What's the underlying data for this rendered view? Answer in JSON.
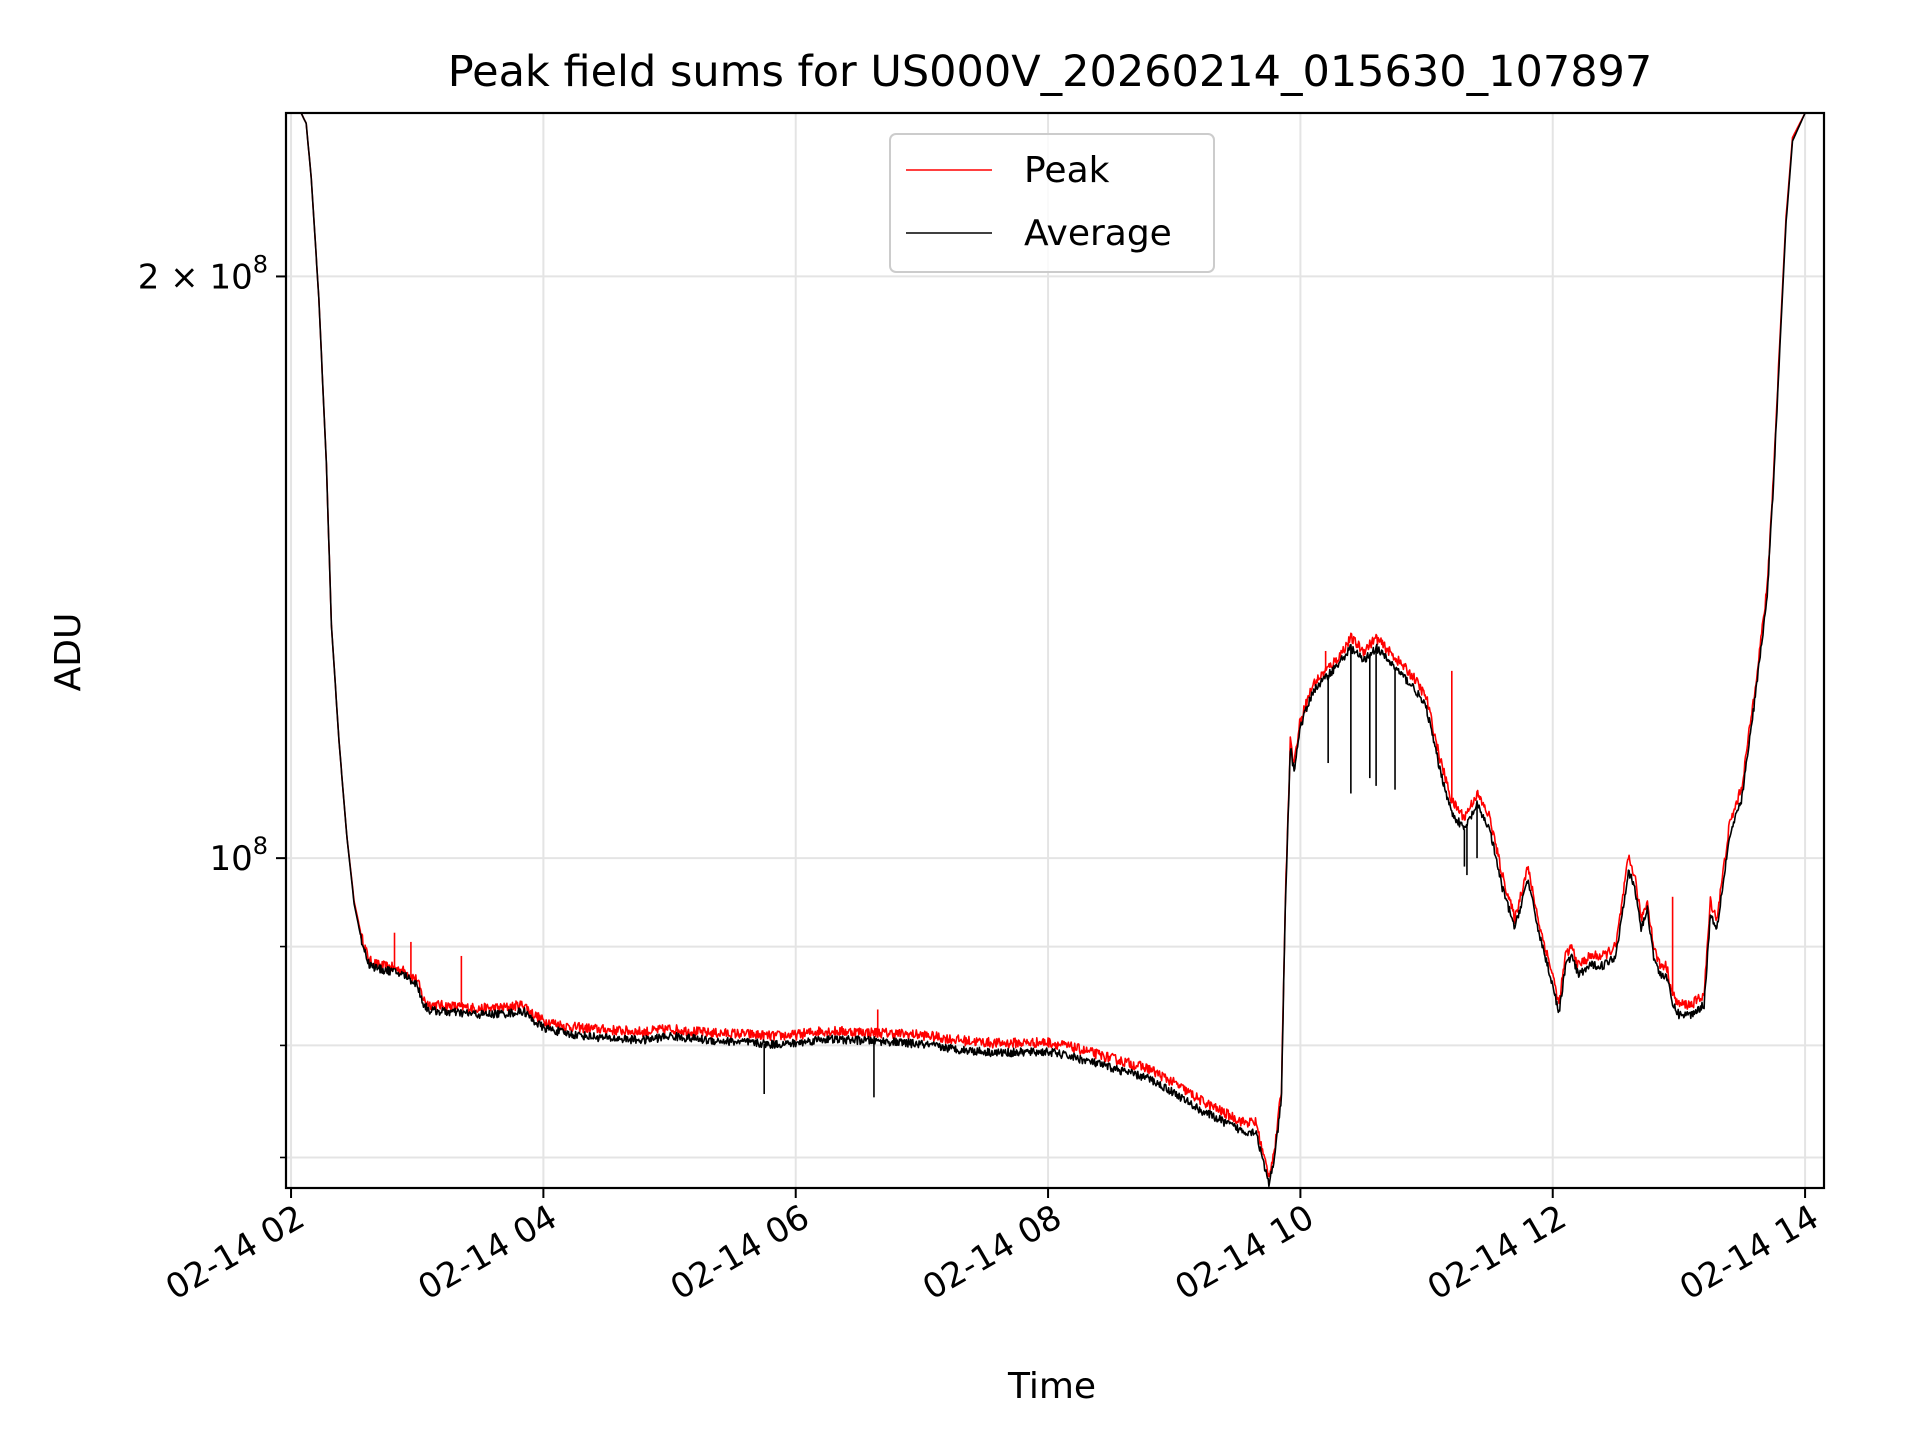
{
  "chart_data": {
    "type": "line",
    "title": "Peak field sums for US000V_20260214_015630_107897",
    "xlabel": "Time",
    "ylabel": "ADU",
    "yscale": "log",
    "ylim": [
      67500000,
      243000000
    ],
    "xlim_hours": [
      1.96,
      14.15
    ],
    "grid": true,
    "legend_position": "top-center",
    "x_tick_hours": [
      2,
      4,
      6,
      8,
      10,
      12,
      14
    ],
    "x_tick_labels": [
      "02-14 02",
      "02-14 04",
      "02-14 06",
      "02-14 08",
      "02-14 10",
      "02-14 12",
      "02-14 14"
    ],
    "y_major_ticks": [
      {
        "value": 200000000,
        "mantissa": "2",
        "exponent": "8"
      },
      {
        "value": 100000000,
        "mantissa": "",
        "exponent": "8"
      }
    ],
    "y_minor_ticks": [
      70000000,
      80000000,
      90000000
    ],
    "series": [
      {
        "name": "Peak",
        "color": "#ff0000",
        "x_hours": [
          1.96,
          2.08,
          2.12,
          2.16,
          2.22,
          2.28,
          2.32,
          2.38,
          2.44,
          2.5,
          2.56,
          2.62,
          2.7,
          2.8,
          2.9,
          3.0,
          3.05,
          3.1,
          3.3,
          3.5,
          3.7,
          3.85,
          3.9,
          4.0,
          4.2,
          4.5,
          4.8,
          5.0,
          5.3,
          5.6,
          5.8,
          6.0,
          6.2,
          6.5,
          6.7,
          7.0,
          7.3,
          7.6,
          8.0,
          8.2,
          8.5,
          8.8,
          9.0,
          9.2,
          9.4,
          9.55,
          9.65,
          9.7,
          9.75,
          9.8,
          9.85,
          9.88,
          9.92,
          9.95,
          10.0,
          10.1,
          10.2,
          10.3,
          10.4,
          10.5,
          10.6,
          10.7,
          10.8,
          10.9,
          11.0,
          11.1,
          11.2,
          11.3,
          11.4,
          11.5,
          11.6,
          11.7,
          11.8,
          11.9,
          12.0,
          12.05,
          12.1,
          12.15,
          12.2,
          12.3,
          12.4,
          12.5,
          12.6,
          12.65,
          12.7,
          12.75,
          12.8,
          12.85,
          12.9,
          12.95,
          13.0,
          13.1,
          13.2,
          13.25,
          13.3,
          13.4,
          13.5,
          13.6,
          13.7,
          13.75,
          13.8,
          13.85,
          13.9,
          14.0
        ],
        "values": [
          243000000,
          243000000,
          240000000,
          225000000,
          195000000,
          160000000,
          132000000,
          115000000,
          103000000,
          95000000,
          91000000,
          88500000,
          88000000,
          87800000,
          87400000,
          86500000,
          84500000,
          84000000,
          83800000,
          83600000,
          83700000,
          84000000,
          83200000,
          82400000,
          81800000,
          81500000,
          81300000,
          81600000,
          81200000,
          81100000,
          80900000,
          81000000,
          81400000,
          81300000,
          81200000,
          81000000,
          80500000,
          80200000,
          80300000,
          79800000,
          78800000,
          77800000,
          76500000,
          75000000,
          73800000,
          73000000,
          73000000,
          70500000,
          68500000,
          71000000,
          76000000,
          95000000,
          115000000,
          112000000,
          118000000,
          123000000,
          125000000,
          127000000,
          130000000,
          128000000,
          130000000,
          128000000,
          126000000,
          124000000,
          121000000,
          113000000,
          107000000,
          105000000,
          108000000,
          105000000,
          98000000,
          93000000,
          99000000,
          92000000,
          87000000,
          84000000,
          89000000,
          90000000,
          88000000,
          89000000,
          89000000,
          90000000,
          100000000,
          98000000,
          93000000,
          95000000,
          90000000,
          88000000,
          88000000,
          85000000,
          84000000,
          84000000,
          85000000,
          95000000,
          93000000,
          104000000,
          109000000,
          122000000,
          138000000,
          158000000,
          185000000,
          215000000,
          236000000,
          243000000
        ]
      },
      {
        "name": "Average",
        "color": "#000000",
        "x_hours": [
          1.96,
          2.08,
          2.12,
          2.16,
          2.22,
          2.28,
          2.32,
          2.38,
          2.44,
          2.5,
          2.56,
          2.62,
          2.7,
          2.8,
          2.9,
          3.0,
          3.05,
          3.1,
          3.3,
          3.5,
          3.7,
          3.85,
          3.9,
          4.0,
          4.2,
          4.5,
          4.8,
          5.0,
          5.3,
          5.6,
          5.8,
          6.0,
          6.2,
          6.5,
          6.7,
          7.0,
          7.3,
          7.6,
          8.0,
          8.2,
          8.5,
          8.8,
          9.0,
          9.2,
          9.4,
          9.55,
          9.65,
          9.7,
          9.75,
          9.8,
          9.85,
          9.88,
          9.92,
          9.95,
          10.0,
          10.1,
          10.2,
          10.3,
          10.4,
          10.5,
          10.6,
          10.7,
          10.8,
          10.9,
          11.0,
          11.1,
          11.2,
          11.3,
          11.4,
          11.5,
          11.6,
          11.7,
          11.8,
          11.9,
          12.0,
          12.05,
          12.1,
          12.15,
          12.2,
          12.3,
          12.4,
          12.5,
          12.6,
          12.65,
          12.7,
          12.75,
          12.8,
          12.85,
          12.9,
          12.95,
          13.0,
          13.1,
          13.2,
          13.25,
          13.3,
          13.4,
          13.5,
          13.6,
          13.7,
          13.75,
          13.8,
          13.85,
          13.9,
          14.0
        ],
        "values": [
          243000000,
          243000000,
          240000000,
          225000000,
          195000000,
          160000000,
          132000000,
          115000000,
          103000000,
          94700000,
          90600000,
          88100000,
          87600000,
          87400000,
          87000000,
          86000000,
          84000000,
          83400000,
          83200000,
          83000000,
          83100000,
          83300000,
          82600000,
          81700000,
          81100000,
          80700000,
          80500000,
          80900000,
          80500000,
          80300000,
          80100000,
          80200000,
          80600000,
          80500000,
          80400000,
          80100000,
          79600000,
          79300000,
          79400000,
          78900000,
          77900000,
          76900000,
          75600000,
          74100000,
          73000000,
          72200000,
          72200000,
          69800000,
          67800000,
          70300000,
          75200000,
          94000000,
          114000000,
          111000000,
          117000000,
          122000000,
          124000000,
          126000000,
          128500000,
          126500000,
          128500000,
          126500000,
          124500000,
          122500000,
          119500000,
          111500000,
          105500000,
          103500000,
          106500000,
          103500000,
          96500000,
          92000000,
          97500000,
          91000000,
          86000000,
          83000000,
          88000000,
          89000000,
          87000000,
          88000000,
          88000000,
          89000000,
          98500000,
          96500000,
          92000000,
          94000000,
          89000000,
          87000000,
          87000000,
          84000000,
          83000000,
          83000000,
          84000000,
          93500000,
          92000000,
          102500000,
          107500000,
          120500000,
          136500000,
          156500000,
          183500000,
          213500000,
          235000000,
          243000000
        ]
      }
    ],
    "annotations": {
      "peak_spikes": [
        {
          "x_hours": 2.82,
          "value": 91500000
        },
        {
          "x_hours": 2.95,
          "value": 90500000
        },
        {
          "x_hours": 3.35,
          "value": 89000000
        },
        {
          "x_hours": 6.65,
          "value": 83500000
        },
        {
          "x_hours": 10.2,
          "value": 128000000
        },
        {
          "x_hours": 11.2,
          "value": 125000000
        },
        {
          "x_hours": 12.95,
          "value": 95500000
        }
      ],
      "average_dips": [
        {
          "x_hours": 5.75,
          "value": 75500000
        },
        {
          "x_hours": 6.62,
          "value": 75200000
        },
        {
          "x_hours": 10.22,
          "value": 112000000
        },
        {
          "x_hours": 10.4,
          "value": 108000000
        },
        {
          "x_hours": 10.55,
          "value": 110000000
        },
        {
          "x_hours": 10.6,
          "value": 109000000
        },
        {
          "x_hours": 10.75,
          "value": 108500000
        },
        {
          "x_hours": 11.3,
          "value": 99000000
        },
        {
          "x_hours": 11.32,
          "value": 98000000
        },
        {
          "x_hours": 11.4,
          "value": 100000000
        }
      ]
    }
  }
}
